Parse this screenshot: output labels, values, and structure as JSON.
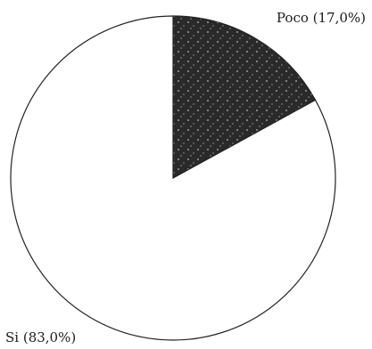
{
  "chart_data": {
    "type": "pie",
    "slices": [
      {
        "label": "Poco (17,0%)",
        "value": 17.0,
        "color": "#2a2a2a"
      },
      {
        "label": "Si (83,0%)",
        "value": 83.0,
        "color": "#ffffff"
      }
    ],
    "start_angle_deg": 0,
    "direction": "clockwise",
    "outline_color": "#222222"
  }
}
